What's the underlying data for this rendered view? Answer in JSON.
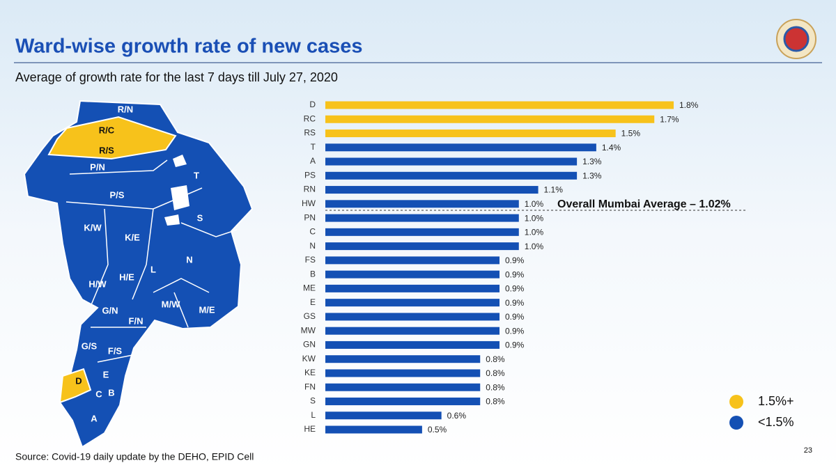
{
  "chart_data": {
    "type": "hbar",
    "title": "Ward-wise growth rate of new cases",
    "subtitle": "Average of growth rate for the last 7 days till July 27, 2020",
    "categories": [
      "D",
      "RC",
      "RS",
      "T",
      "A",
      "PS",
      "RN",
      "HW",
      "PN",
      "C",
      "N",
      "FS",
      "B",
      "ME",
      "E",
      "GS",
      "MW",
      "GN",
      "KW",
      "KE",
      "FN",
      "S",
      "L",
      "HE"
    ],
    "values": [
      1.8,
      1.7,
      1.5,
      1.4,
      1.3,
      1.3,
      1.1,
      1.0,
      1.0,
      1.0,
      1.0,
      0.9,
      0.9,
      0.9,
      0.9,
      0.9,
      0.9,
      0.9,
      0.8,
      0.8,
      0.8,
      0.8,
      0.6,
      0.5
    ],
    "value_labels": [
      "1.8%",
      "1.7%",
      "1.5%",
      "1.4%",
      "1.3%",
      "1.3%",
      "1.1%",
      "1.0%",
      "1.0%",
      "1.0%",
      "1.0%",
      "0.9%",
      "0.9%",
      "0.9%",
      "0.9%",
      "0.9%",
      "0.9%",
      "0.9%",
      "0.8%",
      "0.8%",
      "0.8%",
      "0.8%",
      "0.6%",
      "0.5%"
    ],
    "colors": [
      "#f7c21b",
      "#f7c21b",
      "#f7c21b",
      "#1450b4",
      "#1450b4",
      "#1450b4",
      "#1450b4",
      "#1450b4",
      "#1450b4",
      "#1450b4",
      "#1450b4",
      "#1450b4",
      "#1450b4",
      "#1450b4",
      "#1450b4",
      "#1450b4",
      "#1450b4",
      "#1450b4",
      "#1450b4",
      "#1450b4",
      "#1450b4",
      "#1450b4",
      "#1450b4",
      "#1450b4"
    ],
    "xlim": [
      0,
      1.8
    ],
    "annotation": "Overall Mumbai Average – 1.02%",
    "legend": [
      {
        "label": "1.5%+",
        "color": "#f7c21b"
      },
      {
        "label": "<1.5%",
        "color": "#1450b4"
      }
    ]
  },
  "map": {
    "wards": [
      "R/N",
      "R/C",
      "R/S",
      "P/N",
      "T",
      "P/S",
      "S",
      "K/W",
      "K/E",
      "N",
      "L",
      "H/W",
      "H/E",
      "M/W",
      "G/N",
      "M/E",
      "F/N",
      "G/S",
      "F/S",
      "D",
      "E",
      "C",
      "B",
      "A"
    ]
  },
  "footer": {
    "source": "Source: Covid-19 daily update by the DEHO, EPID Cell",
    "page": "23"
  }
}
